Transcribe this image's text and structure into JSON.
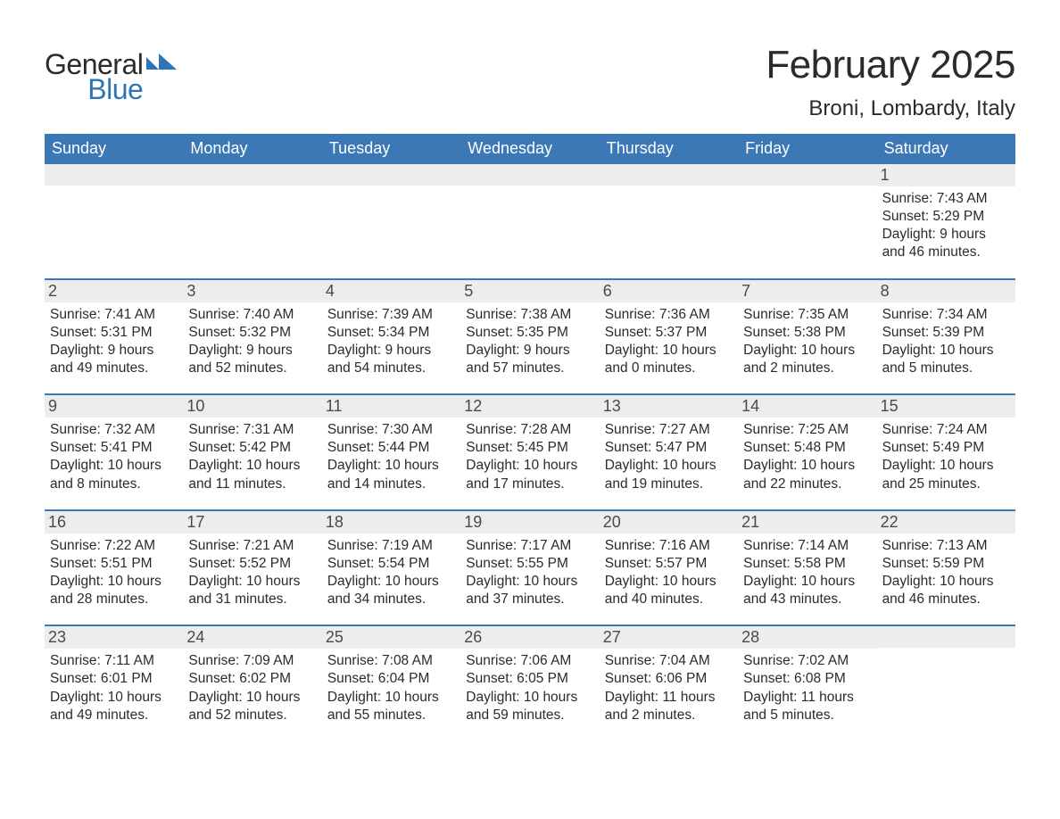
{
  "logo": {
    "word1": "General",
    "word2": "Blue",
    "shape_color": "#2f74b5",
    "text_color_dark": "#2b2b2b",
    "text_color_blue": "#2f74b5"
  },
  "title": "February 2025",
  "location": "Broni, Lombardy, Italy",
  "colors": {
    "header_bg": "#3b78b5",
    "header_text": "#ffffff",
    "daynum_bg": "#ededed",
    "daynum_text": "#4a4a4a",
    "body_text": "#2b2b2b",
    "week_border": "#3b78b5",
    "page_bg": "#ffffff"
  },
  "weekdays": [
    "Sunday",
    "Monday",
    "Tuesday",
    "Wednesday",
    "Thursday",
    "Friday",
    "Saturday"
  ],
  "weeks": [
    [
      null,
      null,
      null,
      null,
      null,
      null,
      {
        "day": "1",
        "sunrise": "Sunrise: 7:43 AM",
        "sunset": "Sunset: 5:29 PM",
        "daylight": "Daylight: 9 hours and 46 minutes."
      }
    ],
    [
      {
        "day": "2",
        "sunrise": "Sunrise: 7:41 AM",
        "sunset": "Sunset: 5:31 PM",
        "daylight": "Daylight: 9 hours and 49 minutes."
      },
      {
        "day": "3",
        "sunrise": "Sunrise: 7:40 AM",
        "sunset": "Sunset: 5:32 PM",
        "daylight": "Daylight: 9 hours and 52 minutes."
      },
      {
        "day": "4",
        "sunrise": "Sunrise: 7:39 AM",
        "sunset": "Sunset: 5:34 PM",
        "daylight": "Daylight: 9 hours and 54 minutes."
      },
      {
        "day": "5",
        "sunrise": "Sunrise: 7:38 AM",
        "sunset": "Sunset: 5:35 PM",
        "daylight": "Daylight: 9 hours and 57 minutes."
      },
      {
        "day": "6",
        "sunrise": "Sunrise: 7:36 AM",
        "sunset": "Sunset: 5:37 PM",
        "daylight": "Daylight: 10 hours and 0 minutes."
      },
      {
        "day": "7",
        "sunrise": "Sunrise: 7:35 AM",
        "sunset": "Sunset: 5:38 PM",
        "daylight": "Daylight: 10 hours and 2 minutes."
      },
      {
        "day": "8",
        "sunrise": "Sunrise: 7:34 AM",
        "sunset": "Sunset: 5:39 PM",
        "daylight": "Daylight: 10 hours and 5 minutes."
      }
    ],
    [
      {
        "day": "9",
        "sunrise": "Sunrise: 7:32 AM",
        "sunset": "Sunset: 5:41 PM",
        "daylight": "Daylight: 10 hours and 8 minutes."
      },
      {
        "day": "10",
        "sunrise": "Sunrise: 7:31 AM",
        "sunset": "Sunset: 5:42 PM",
        "daylight": "Daylight: 10 hours and 11 minutes."
      },
      {
        "day": "11",
        "sunrise": "Sunrise: 7:30 AM",
        "sunset": "Sunset: 5:44 PM",
        "daylight": "Daylight: 10 hours and 14 minutes."
      },
      {
        "day": "12",
        "sunrise": "Sunrise: 7:28 AM",
        "sunset": "Sunset: 5:45 PM",
        "daylight": "Daylight: 10 hours and 17 minutes."
      },
      {
        "day": "13",
        "sunrise": "Sunrise: 7:27 AM",
        "sunset": "Sunset: 5:47 PM",
        "daylight": "Daylight: 10 hours and 19 minutes."
      },
      {
        "day": "14",
        "sunrise": "Sunrise: 7:25 AM",
        "sunset": "Sunset: 5:48 PM",
        "daylight": "Daylight: 10 hours and 22 minutes."
      },
      {
        "day": "15",
        "sunrise": "Sunrise: 7:24 AM",
        "sunset": "Sunset: 5:49 PM",
        "daylight": "Daylight: 10 hours and 25 minutes."
      }
    ],
    [
      {
        "day": "16",
        "sunrise": "Sunrise: 7:22 AM",
        "sunset": "Sunset: 5:51 PM",
        "daylight": "Daylight: 10 hours and 28 minutes."
      },
      {
        "day": "17",
        "sunrise": "Sunrise: 7:21 AM",
        "sunset": "Sunset: 5:52 PM",
        "daylight": "Daylight: 10 hours and 31 minutes."
      },
      {
        "day": "18",
        "sunrise": "Sunrise: 7:19 AM",
        "sunset": "Sunset: 5:54 PM",
        "daylight": "Daylight: 10 hours and 34 minutes."
      },
      {
        "day": "19",
        "sunrise": "Sunrise: 7:17 AM",
        "sunset": "Sunset: 5:55 PM",
        "daylight": "Daylight: 10 hours and 37 minutes."
      },
      {
        "day": "20",
        "sunrise": "Sunrise: 7:16 AM",
        "sunset": "Sunset: 5:57 PM",
        "daylight": "Daylight: 10 hours and 40 minutes."
      },
      {
        "day": "21",
        "sunrise": "Sunrise: 7:14 AM",
        "sunset": "Sunset: 5:58 PM",
        "daylight": "Daylight: 10 hours and 43 minutes."
      },
      {
        "day": "22",
        "sunrise": "Sunrise: 7:13 AM",
        "sunset": "Sunset: 5:59 PM",
        "daylight": "Daylight: 10 hours and 46 minutes."
      }
    ],
    [
      {
        "day": "23",
        "sunrise": "Sunrise: 7:11 AM",
        "sunset": "Sunset: 6:01 PM",
        "daylight": "Daylight: 10 hours and 49 minutes."
      },
      {
        "day": "24",
        "sunrise": "Sunrise: 7:09 AM",
        "sunset": "Sunset: 6:02 PM",
        "daylight": "Daylight: 10 hours and 52 minutes."
      },
      {
        "day": "25",
        "sunrise": "Sunrise: 7:08 AM",
        "sunset": "Sunset: 6:04 PM",
        "daylight": "Daylight: 10 hours and 55 minutes."
      },
      {
        "day": "26",
        "sunrise": "Sunrise: 7:06 AM",
        "sunset": "Sunset: 6:05 PM",
        "daylight": "Daylight: 10 hours and 59 minutes."
      },
      {
        "day": "27",
        "sunrise": "Sunrise: 7:04 AM",
        "sunset": "Sunset: 6:06 PM",
        "daylight": "Daylight: 11 hours and 2 minutes."
      },
      {
        "day": "28",
        "sunrise": "Sunrise: 7:02 AM",
        "sunset": "Sunset: 6:08 PM",
        "daylight": "Daylight: 11 hours and 5 minutes."
      },
      null
    ]
  ]
}
